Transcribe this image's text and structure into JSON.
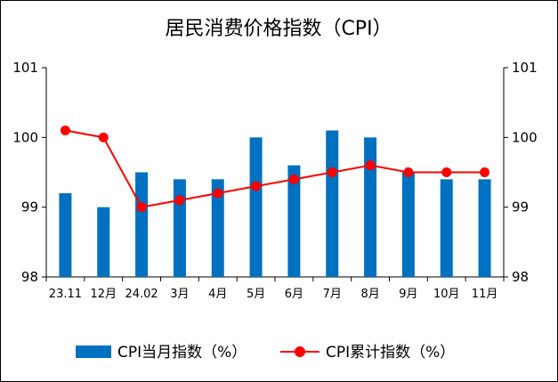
{
  "chart_data": {
    "type": "bar+line",
    "title": "居民消费价格指数（CPI）",
    "categories": [
      "23.11",
      "12月",
      "24.02",
      "3月",
      "4月",
      "5月",
      "6月",
      "7月",
      "8月",
      "9月",
      "10月",
      "11月"
    ],
    "series": [
      {
        "name": "CPI当月指数（%）",
        "type": "bar",
        "color": "#0070C0",
        "values": [
          99.2,
          99.0,
          99.5,
          99.4,
          99.4,
          100.0,
          99.6,
          100.1,
          100.0,
          99.5,
          99.4,
          99.4
        ]
      },
      {
        "name": "CPI累计指数（%）",
        "type": "line",
        "color": "#FF0000",
        "values": [
          100.1,
          100.0,
          99.0,
          99.1,
          99.2,
          99.3,
          99.4,
          99.5,
          99.6,
          99.5,
          99.5,
          99.5
        ]
      }
    ],
    "ylim": [
      98,
      101
    ],
    "yticks": [
      "98",
      "99",
      "100",
      "101"
    ],
    "grid": false,
    "legend": "bottom"
  }
}
